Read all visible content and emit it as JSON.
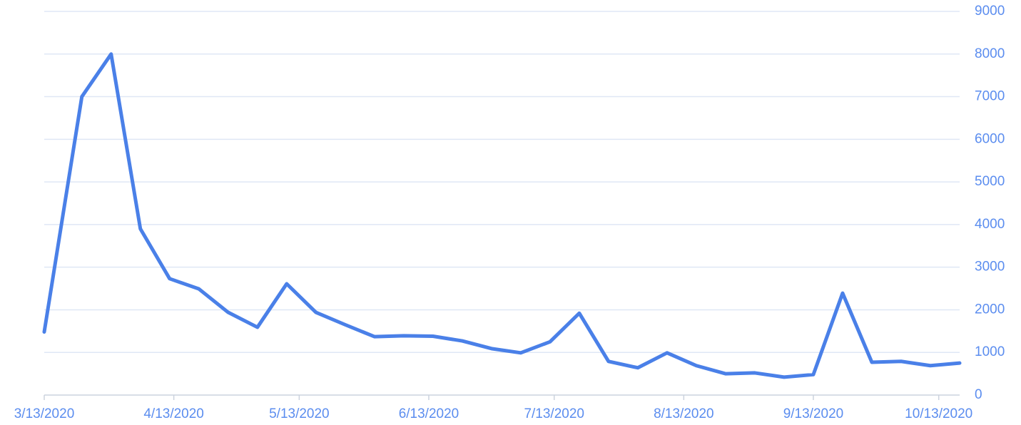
{
  "chart_data": {
    "type": "line",
    "x": [
      "2020-03-13",
      "2020-03-22",
      "2020-03-29",
      "2020-04-05",
      "2020-04-12",
      "2020-04-19",
      "2020-04-26",
      "2020-05-03",
      "2020-05-10",
      "2020-05-17",
      "2020-05-24",
      "2020-05-31",
      "2020-06-07",
      "2020-06-14",
      "2020-06-21",
      "2020-06-28",
      "2020-07-05",
      "2020-07-12",
      "2020-07-19",
      "2020-07-26",
      "2020-08-02",
      "2020-08-09",
      "2020-08-16",
      "2020-08-23",
      "2020-08-30",
      "2020-09-06",
      "2020-09-13",
      "2020-09-20",
      "2020-09-27",
      "2020-10-04",
      "2020-10-11",
      "2020-10-18"
    ],
    "values": [
      1480,
      7000,
      8000,
      3900,
      2730,
      2490,
      1940,
      1590,
      2610,
      1940,
      1650,
      1370,
      1390,
      1380,
      1270,
      1090,
      990,
      1250,
      1920,
      790,
      640,
      990,
      690,
      500,
      520,
      420,
      480,
      2390,
      770,
      790,
      690,
      750
    ],
    "color": "#4a80e8",
    "xlim": [
      "2020-03-13",
      "2020-10-18"
    ],
    "xticks": [
      {
        "value": "2020-03-13",
        "label": "3/13/2020"
      },
      {
        "value": "2020-04-13",
        "label": "4/13/2020"
      },
      {
        "value": "2020-05-13",
        "label": "5/13/2020"
      },
      {
        "value": "2020-06-13",
        "label": "6/13/2020"
      },
      {
        "value": "2020-07-13",
        "label": "7/13/2020"
      },
      {
        "value": "2020-08-13",
        "label": "8/13/2020"
      },
      {
        "value": "2020-09-13",
        "label": "9/13/2020"
      },
      {
        "value": "2020-10-13",
        "label": "10/13/2020"
      }
    ],
    "ylim": [
      0,
      9000
    ],
    "yticks": [
      0,
      1000,
      2000,
      3000,
      4000,
      5000,
      6000,
      7000,
      8000,
      9000
    ],
    "grid": true
  }
}
